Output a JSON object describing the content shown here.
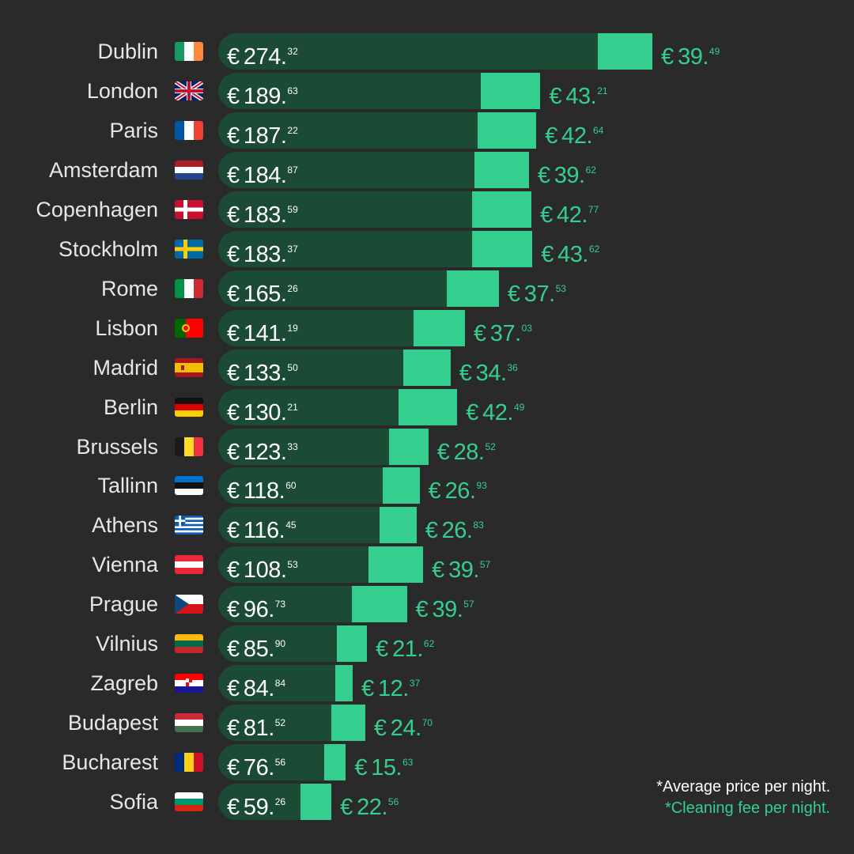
{
  "chart_data": {
    "type": "bar",
    "orientation": "horizontal",
    "stacked": true,
    "categories": [
      "Dublin",
      "London",
      "Paris",
      "Amsterdam",
      "Copenhagen",
      "Stockholm",
      "Rome",
      "Lisbon",
      "Madrid",
      "Berlin",
      "Brussels",
      "Tallinn",
      "Athens",
      "Vienna",
      "Prague",
      "Vilnius",
      "Zagreb",
      "Budapest",
      "Bucharest",
      "Sofia"
    ],
    "flags": [
      "ie",
      "gb",
      "fr",
      "nl",
      "dk",
      "se",
      "it",
      "pt",
      "es",
      "de",
      "be",
      "ee",
      "gr",
      "at",
      "cz",
      "lt",
      "hr",
      "hu",
      "ro",
      "bg"
    ],
    "currency_symbol": "€",
    "series": [
      {
        "color": "#1b4a35",
        "values": [
          274.32,
          189.63,
          187.22,
          184.87,
          183.59,
          183.37,
          165.26,
          141.19,
          133.5,
          130.21,
          123.33,
          118.6,
          116.45,
          108.53,
          96.73,
          85.9,
          84.84,
          81.52,
          76.56,
          59.26
        ],
        "whole": [
          "274.",
          "189.",
          "187.",
          "184.",
          "183.",
          "183.",
          "165.",
          "141.",
          "133.",
          "130.",
          "123.",
          "118.",
          "116.",
          "108.",
          "96.",
          "85.",
          "84.",
          "81.",
          "76.",
          "59."
        ],
        "cents": [
          "32",
          "63",
          "22",
          "87",
          "59",
          "37",
          "26",
          "19",
          "50",
          "21",
          "33",
          "60",
          "45",
          "53",
          "73",
          "90",
          "84",
          "52",
          "56",
          "26"
        ]
      },
      {
        "color": "#34cf8e",
        "values": [
          39.49,
          43.21,
          42.64,
          39.62,
          42.77,
          43.62,
          37.53,
          37.03,
          34.36,
          42.49,
          28.52,
          26.93,
          26.83,
          39.57,
          39.57,
          21.62,
          12.37,
          24.7,
          15.63,
          22.56
        ],
        "whole": [
          "39.",
          "43.",
          "42.",
          "39.",
          "42.",
          "43.",
          "37.",
          "37.",
          "34.",
          "42.",
          "28.",
          "26.",
          "26.",
          "39.",
          "39.",
          "21.",
          "12.",
          "24.",
          "15.",
          "22."
        ],
        "cents": [
          "49",
          "21",
          "64",
          "62",
          "77",
          "62",
          "53",
          "03",
          "36",
          "49",
          "52",
          "93",
          "83",
          "57",
          "57",
          "62",
          "37",
          "70",
          "63",
          "56"
        ]
      }
    ],
    "legend": {
      "price_note": "*Average price per night.",
      "fee_note": "*Cleaning fee per night.",
      "placement": "bottom-right"
    },
    "background": "#2a2a2a"
  }
}
